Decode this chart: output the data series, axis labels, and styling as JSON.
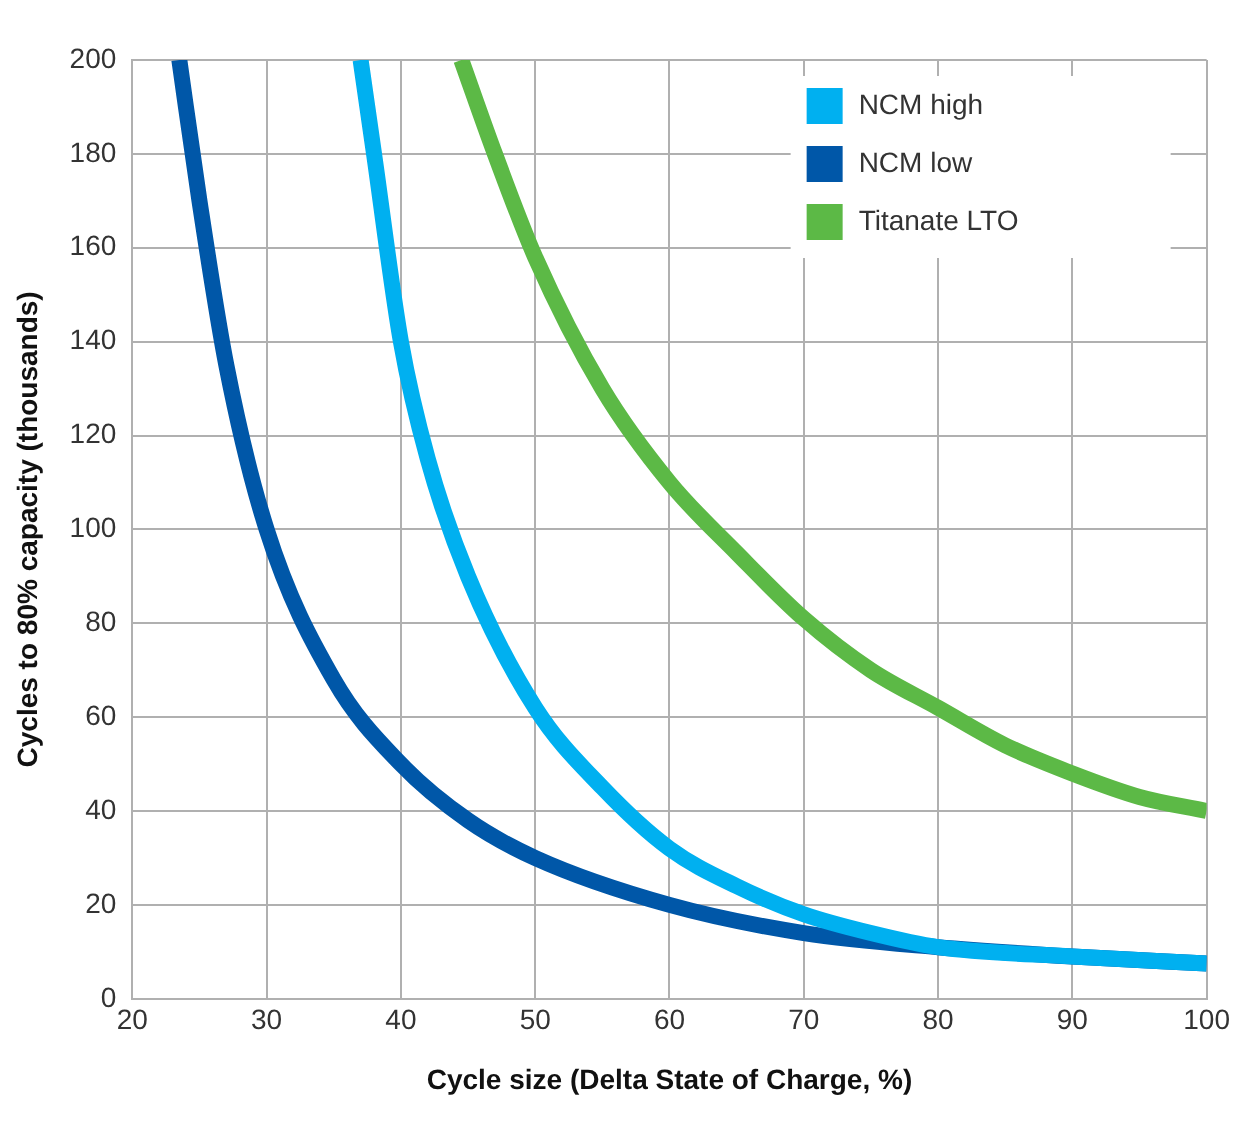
{
  "chart_data": {
    "type": "line",
    "xlabel": "Cycle size (Delta State of Charge, %)",
    "ylabel": "Cycles to 80% capacity (thousands)",
    "xlim": [
      20,
      100
    ],
    "xticks": [
      20,
      30,
      40,
      50,
      60,
      70,
      80,
      90,
      100
    ],
    "ylim": [
      0,
      200
    ],
    "yticks": [
      0,
      20,
      40,
      60,
      80,
      100,
      120,
      140,
      160,
      180,
      200
    ],
    "grid": true,
    "legend": "top right",
    "marker": "none",
    "line_style": "solid",
    "series": [
      {
        "name": "NCM high",
        "color": "#00b0f0",
        "x": [
          37,
          38,
          40,
          42,
          45,
          50,
          55,
          60,
          65,
          70,
          75,
          80,
          90,
          100
        ],
        "values": [
          200,
          180,
          140,
          115,
          90,
          62,
          45,
          32,
          24,
          18,
          14,
          11,
          9,
          7.5
        ]
      },
      {
        "name": "NCM low",
        "color": "#0057a8",
        "x": [
          23.5,
          25,
          27,
          30,
          35,
          40,
          45,
          50,
          60,
          70,
          80,
          90,
          100
        ],
        "values": [
          200,
          170,
          135,
          100,
          68,
          50,
          38,
          30,
          20,
          14,
          11,
          9,
          7.5
        ]
      },
      {
        "name": "Titanate LTO",
        "color": "#5cb946",
        "x": [
          44.5,
          47,
          50,
          55,
          60,
          65,
          70,
          75,
          80,
          85,
          90,
          95,
          100
        ],
        "values": [
          200,
          180,
          158,
          130,
          110,
          95,
          81,
          70,
          62,
          54,
          48,
          43,
          40
        ]
      }
    ]
  }
}
